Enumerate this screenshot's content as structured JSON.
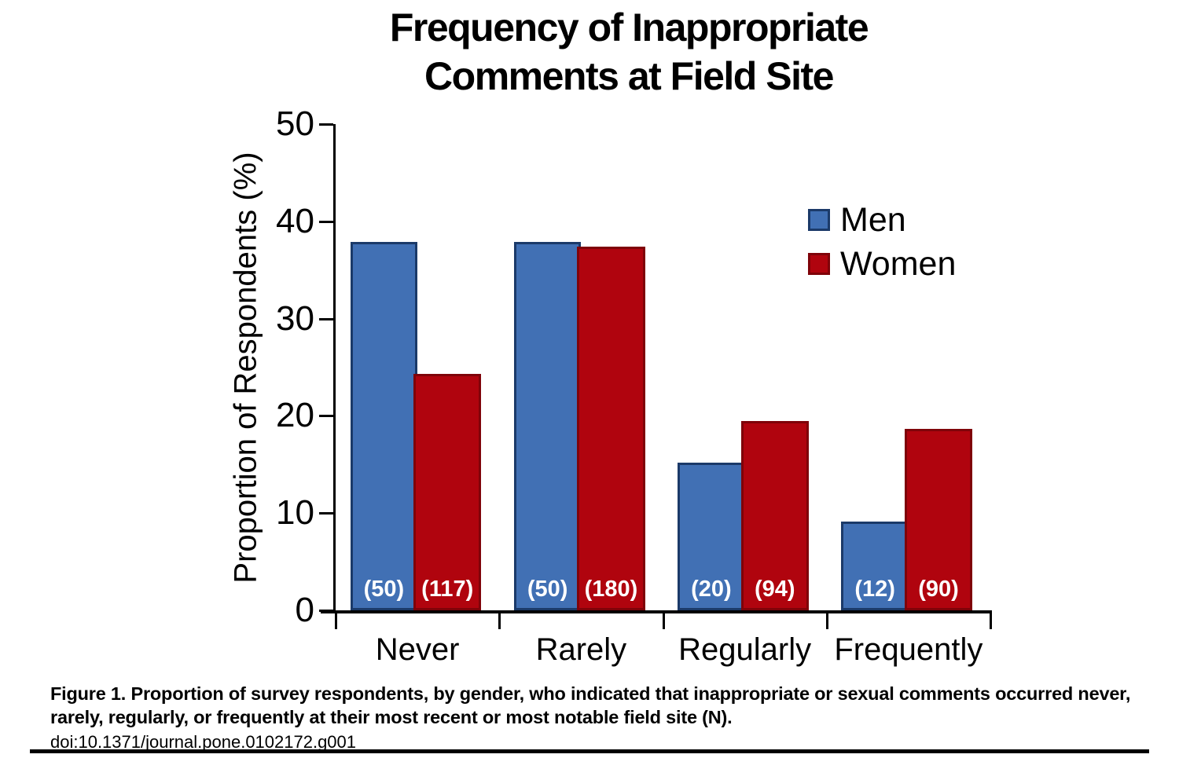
{
  "header": {
    "title_line1": "Frequency of Inappropriate",
    "title_line2": "Comments at Field Site"
  },
  "chart_data": {
    "type": "bar",
    "title": "Frequency of Inappropriate Comments at Field Site",
    "categories": [
      "Never",
      "Rarely",
      "Regularly",
      "Frequently"
    ],
    "series": [
      {
        "name": "Men",
        "color": "#4170B4",
        "border_color": "#1B3A69",
        "values": [
          37.9,
          37.9,
          15.2,
          9.1
        ],
        "counts": [
          50,
          50,
          20,
          12
        ]
      },
      {
        "name": "Women",
        "color": "#B0040E",
        "border_color": "#7F0309",
        "values": [
          24.3,
          37.4,
          19.5,
          18.7
        ],
        "counts": [
          117,
          180,
          94,
          90
        ]
      }
    ],
    "bar_count_labels": [
      "(50)",
      "(117)",
      "(50)",
      "(180)",
      "(20)",
      "(94)",
      "(12)",
      "(90)"
    ],
    "xlabel": "",
    "ylabel": "Proportion of Respondents (%)",
    "ylim": [
      0,
      50
    ],
    "yticks": [
      0,
      10,
      20,
      30,
      40,
      50
    ],
    "grid": false,
    "legend_position": "upper-right",
    "count_text_color": "#ffffff",
    "axis_color": "#000000"
  },
  "caption": {
    "line1": "Figure 1. Proportion of survey respondents, by gender, who indicated that inappropriate or sexual comments occurred never,",
    "line2": "rarely, regularly, or frequently at their most recent or most notable field site (N).",
    "doi": "doi:10.1371/journal.pone.0102172.g001"
  }
}
